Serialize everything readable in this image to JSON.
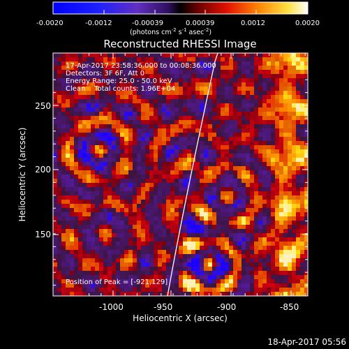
{
  "colorbar": {
    "ticks": [
      "-0.0020",
      "-0.0012",
      "-0.00039",
      "0.00039",
      "0.0012",
      "0.0020"
    ],
    "units_main": "(photons cm",
    "units_exp1": "-2",
    "units_mid": " s",
    "units_exp2": "-1",
    "units_end": " asec",
    "units_exp3": "-2",
    "units_close": ")"
  },
  "plot": {
    "title": "Reconstructed RHESSI Image",
    "xlabel": "Heliocentric X (arcsec)",
    "ylabel": "Heliocentric Y (arcsec)",
    "x_ticks": [
      "-1000",
      "-950",
      "-900",
      "-850"
    ],
    "y_ticks": [
      "250",
      "200",
      "150"
    ],
    "xlim": [
      -1043,
      -843
    ],
    "ylim": [
      101,
      286
    ]
  },
  "info": {
    "line1": "17-Apr-2017 23:58:36.000 to 00:08:36.000",
    "line2": "Detectors: 3F 6F, Att 0",
    "line3": "Energy Range: 25.0 - 50.0 keV",
    "line4": "Clean    Total counts: 1.96E+04",
    "peak": "Position of Peak = [-921,129]"
  },
  "footer": {
    "timestamp": "18-Apr-2017 05:56"
  },
  "colors": {
    "background": "#000000",
    "limb": "#ffffff"
  }
}
